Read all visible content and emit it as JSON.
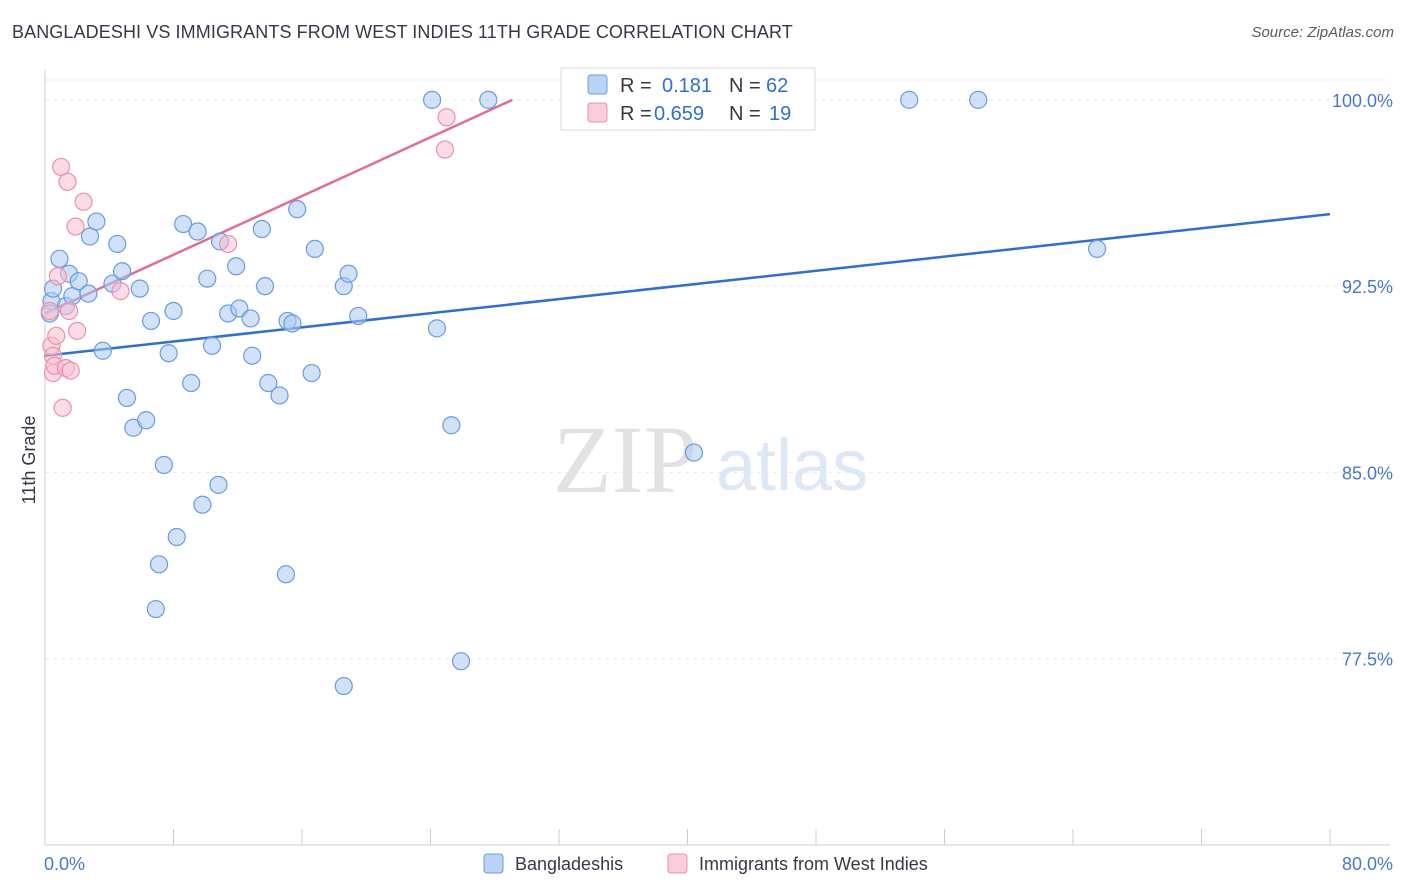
{
  "title": "BANGLADESHI VS IMMIGRANTS FROM WEST INDIES 11TH GRADE CORRELATION CHART",
  "source": "Source: ZipAtlas.com",
  "watermark": {
    "zip": "ZIP",
    "atlas": "atlas"
  },
  "legend_box": {
    "rows": [
      {
        "r_label": "R =",
        "r_value": "0.181",
        "n_label": "N =",
        "n_value": "62",
        "color": "#a9c8f2",
        "stroke": "#6a9be0"
      },
      {
        "r_label": "R =",
        "r_value": "0.659",
        "n_label": "N =",
        "n_value": "19",
        "color": "#f7c0d0",
        "stroke": "#ec8fab"
      }
    ]
  },
  "chart_data": {
    "type": "scatter",
    "title": "BANGLADESHI VS IMMIGRANTS FROM WEST INDIES 11TH GRADE CORRELATION CHART",
    "xlabel": "",
    "ylabel": "11th Grade",
    "xlim": [
      0,
      80
    ],
    "ylim": [
      70,
      100.8
    ],
    "x_tick_labels": [
      "0.0%",
      "80.0%"
    ],
    "y_ticks": [
      77.5,
      85.0,
      92.5,
      100.0
    ],
    "y_tick_labels": [
      "77.5%",
      "85.0%",
      "92.5%",
      "100.0%"
    ],
    "grid": true,
    "legend": [
      "Bangladeshis",
      "Immigrants from West Indies"
    ],
    "series": [
      {
        "name": "Bangladeshis",
        "color": "#a9c8f2",
        "stroke": "#6a9be0",
        "trend_color": "#2f6fcf",
        "trend": {
          "x": [
            0,
            80
          ],
          "y": [
            89.7,
            95.4
          ]
        },
        "points": [
          [
            0.4,
            91.9
          ],
          [
            0.3,
            91.4
          ],
          [
            0.5,
            92.4
          ],
          [
            0.9,
            93.6
          ],
          [
            1.3,
            91.7
          ],
          [
            1.5,
            93.0
          ],
          [
            1.7,
            92.1
          ],
          [
            2.1,
            92.7
          ],
          [
            2.7,
            92.2
          ],
          [
            2.8,
            94.5
          ],
          [
            3.2,
            95.1
          ],
          [
            3.6,
            89.9
          ],
          [
            4.2,
            92.6
          ],
          [
            4.5,
            94.2
          ],
          [
            4.8,
            93.1
          ],
          [
            5.1,
            88.0
          ],
          [
            5.5,
            86.8
          ],
          [
            5.9,
            92.4
          ],
          [
            6.3,
            87.1
          ],
          [
            6.6,
            91.1
          ],
          [
            7.1,
            81.3
          ],
          [
            7.4,
            85.3
          ],
          [
            7.7,
            89.8
          ],
          [
            8.0,
            91.5
          ],
          [
            8.2,
            82.4
          ],
          [
            8.6,
            95.0
          ],
          [
            9.1,
            88.6
          ],
          [
            9.5,
            94.7
          ],
          [
            9.8,
            83.7
          ],
          [
            10.1,
            92.8
          ],
          [
            10.4,
            90.1
          ],
          [
            10.8,
            84.5
          ],
          [
            10.9,
            94.3
          ],
          [
            11.4,
            91.4
          ],
          [
            11.9,
            93.3
          ],
          [
            12.1,
            91.6
          ],
          [
            12.9,
            89.7
          ],
          [
            12.8,
            91.2
          ],
          [
            13.5,
            94.8
          ],
          [
            13.7,
            92.5
          ],
          [
            13.9,
            88.6
          ],
          [
            14.6,
            88.1
          ],
          [
            15.1,
            91.1
          ],
          [
            15.4,
            91.0
          ],
          [
            15.7,
            95.6
          ],
          [
            16.6,
            89.0
          ],
          [
            16.8,
            94.0
          ],
          [
            18.6,
            76.4
          ],
          [
            18.6,
            92.5
          ],
          [
            18.9,
            93.0
          ],
          [
            19.5,
            91.3
          ],
          [
            15.0,
            80.9
          ],
          [
            6.9,
            79.5
          ],
          [
            24.4,
            90.8
          ],
          [
            24.1,
            100.0
          ],
          [
            25.3,
            86.9
          ],
          [
            25.9,
            77.4
          ],
          [
            27.6,
            100.0
          ],
          [
            40.4,
            85.8
          ],
          [
            53.8,
            100.0
          ],
          [
            58.1,
            100.0
          ],
          [
            65.5,
            94.0
          ]
        ]
      },
      {
        "name": "Immigrants from West Indies",
        "color": "#f7c0d0",
        "stroke": "#ec8fab",
        "trend_color": "#e06d93",
        "trend": {
          "x": [
            0,
            29.1
          ],
          "y": [
            91.4,
            100.0
          ]
        },
        "points": [
          [
            0.3,
            91.5
          ],
          [
            0.4,
            90.1
          ],
          [
            0.5,
            89.7
          ],
          [
            0.5,
            89.0
          ],
          [
            0.6,
            89.3
          ],
          [
            0.7,
            90.5
          ],
          [
            0.8,
            92.9
          ],
          [
            1.0,
            97.3
          ],
          [
            1.1,
            87.6
          ],
          [
            1.3,
            89.2
          ],
          [
            1.4,
            96.7
          ],
          [
            1.5,
            91.5
          ],
          [
            1.6,
            89.1
          ],
          [
            1.9,
            94.9
          ],
          [
            2.0,
            90.7
          ],
          [
            2.4,
            95.9
          ],
          [
            4.7,
            92.3
          ],
          [
            11.4,
            94.2
          ],
          [
            24.9,
            98.0
          ]
        ]
      }
    ],
    "extra_points": [
      [
        25.0,
        99.3
      ]
    ]
  }
}
